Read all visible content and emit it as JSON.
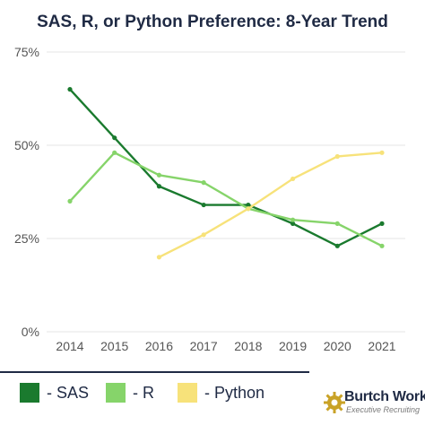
{
  "chart_data": {
    "type": "line",
    "title": "SAS, R, or Python Preference: 8-Year Trend",
    "x": [
      2014,
      2015,
      2016,
      2017,
      2018,
      2019,
      2020,
      2021
    ],
    "ylim": [
      0,
      75
    ],
    "y_ticks": [
      0,
      25,
      50,
      75
    ],
    "y_tick_labels": [
      "0%",
      "25%",
      "50%",
      "75%"
    ],
    "grid": true,
    "legend_position": "bottom-left",
    "series": [
      {
        "name": "- SAS",
        "color": "#1a7a2e",
        "values": [
          65,
          52,
          39,
          34,
          34,
          29,
          23,
          29
        ]
      },
      {
        "name": "- R",
        "color": "#86d46a",
        "values": [
          35,
          48,
          42,
          40,
          33,
          30,
          29,
          23
        ]
      },
      {
        "name": "- Python",
        "color": "#f7e27a",
        "values": [
          null,
          null,
          20,
          26,
          33,
          41,
          47,
          48
        ]
      }
    ]
  },
  "logo": {
    "name": "Burtch Works",
    "tagline": "Executive Recruiting",
    "icon": "gear-icon",
    "colors": {
      "gear": "#c9a227",
      "text": "#1f2a44"
    }
  },
  "colors": {
    "title": "#1f2a44",
    "grid": "#e6e6e6",
    "axis_text": "#555555"
  }
}
